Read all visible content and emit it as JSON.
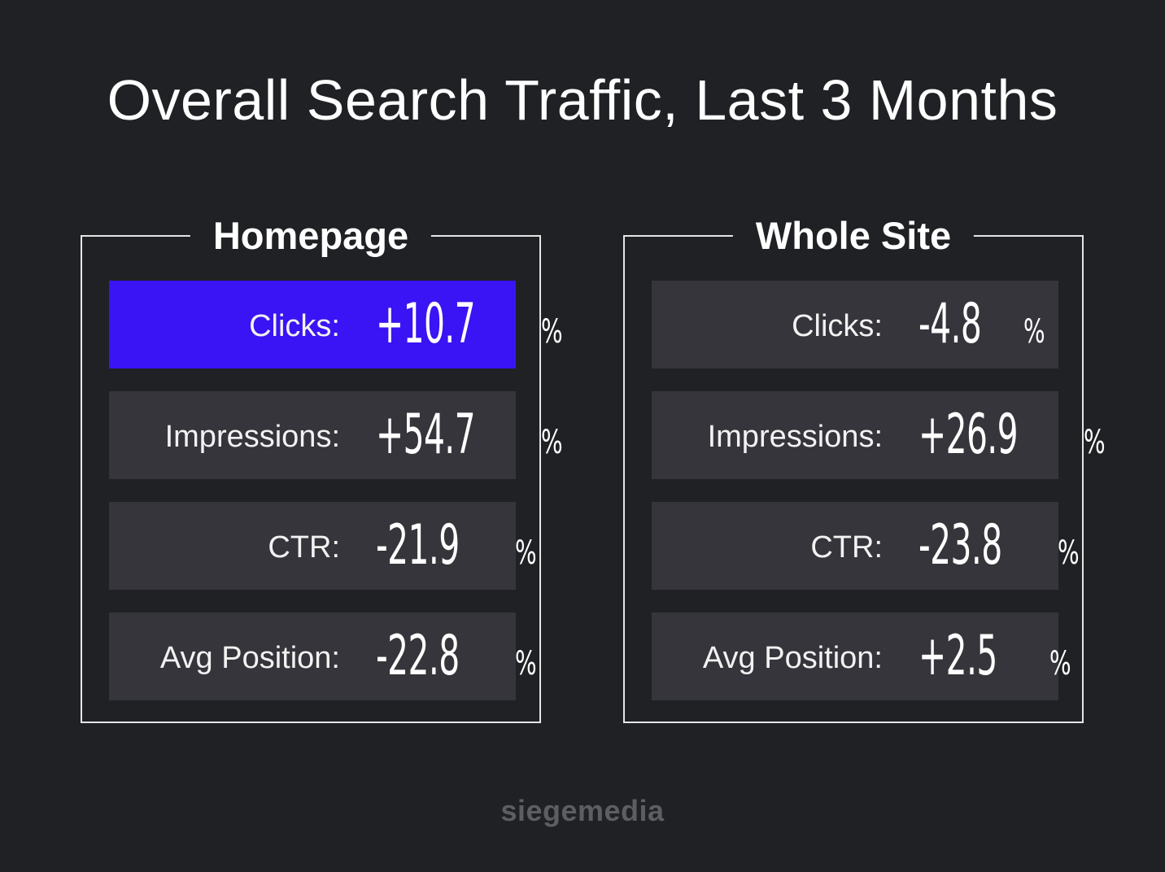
{
  "chart_data": {
    "type": "table",
    "title": "Overall Search Traffic, Last 3 Months",
    "series": [
      {
        "name": "Homepage",
        "rows": [
          {
            "label": "Clicks:",
            "value": "+10.7",
            "unit": "%",
            "highlight": true
          },
          {
            "label": "Impressions:",
            "value": "+54.7",
            "unit": "%",
            "highlight": false
          },
          {
            "label": "CTR:",
            "value": "-21.9",
            "unit": "%",
            "highlight": false
          },
          {
            "label": "Avg Position:",
            "value": "-22.8",
            "unit": "%",
            "highlight": false
          }
        ]
      },
      {
        "name": "Whole Site",
        "rows": [
          {
            "label": "Clicks:",
            "value": "-4.8",
            "unit": "%",
            "highlight": false
          },
          {
            "label": "Impressions:",
            "value": "+26.9",
            "unit": "%",
            "highlight": false
          },
          {
            "label": "CTR:",
            "value": "-23.8",
            "unit": "%",
            "highlight": false
          },
          {
            "label": "Avg Position:",
            "value": "+2.5",
            "unit": "%",
            "highlight": false
          }
        ]
      }
    ]
  },
  "footer": {
    "brand": "siegemedia"
  },
  "colors": {
    "background": "#1f2124",
    "row": "#35353b",
    "highlight": "#3a14f4",
    "border": "#e6e6e6",
    "brand": "#5c5e62"
  }
}
